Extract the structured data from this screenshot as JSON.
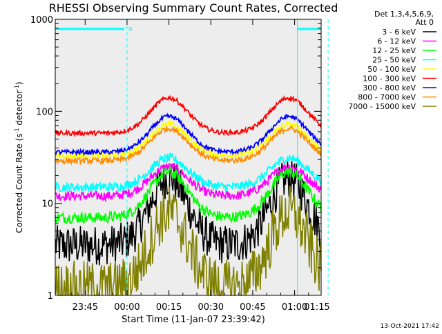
{
  "chart_data": {
    "type": "line",
    "title": "RHESSI Observing Summary Count Rates, Corrected",
    "xlabel": "Start Time (11-Jan-07 23:39:42)",
    "ylabel_main": "Corrected Count Rate (s",
    "ylabel_sup1": "-1",
    "ylabel_mid": " detector",
    "ylabel_sup2": "-1",
    "ylabel_end": ")",
    "yscale": "log",
    "ylim": [
      1,
      1000
    ],
    "xlim_minutes": [
      -5.7,
      89.5
    ],
    "x_ticks": [
      {
        "t": 5,
        "label": "23:45"
      },
      {
        "t": 20,
        "label": "00:00"
      },
      {
        "t": 35,
        "label": "00:15"
      },
      {
        "t": 50,
        "label": "00:30"
      },
      {
        "t": 65,
        "label": "00:45"
      },
      {
        "t": 80,
        "label": "01:00"
      },
      {
        "t": 95,
        "label": "01:15"
      }
    ],
    "y_ticks": [
      {
        "v": 1,
        "label": "1"
      },
      {
        "v": 10,
        "label": "10"
      },
      {
        "v": 100,
        "label": "100"
      },
      {
        "v": 1000,
        "label": "1000"
      }
    ],
    "legend_header": [
      "Det 1,3,4,5,6,9,",
      "Att 0"
    ],
    "legend_position": "right",
    "series": [
      {
        "name": "3 - 6 keV",
        "color": "#000000",
        "base": 3.5,
        "peak": 19,
        "noise": 0.22
      },
      {
        "name": "6 - 12 keV",
        "color": "#ff00ff",
        "base": 12,
        "peak": 25,
        "noise": 0.05
      },
      {
        "name": "12 - 25 keV",
        "color": "#00ff00",
        "base": 7,
        "peak": 22,
        "noise": 0.06
      },
      {
        "name": "25 - 50 keV",
        "color": "#00ffff",
        "base": 15,
        "peak": 31,
        "noise": 0.05
      },
      {
        "name": "50 - 100 keV",
        "color": "#ffff00",
        "base": 33,
        "peak": 72,
        "noise": 0.03
      },
      {
        "name": "100 - 300 keV",
        "color": "#ff0000",
        "base": 58,
        "peak": 140,
        "noise": 0.025
      },
      {
        "name": "300 - 800 keV",
        "color": "#0000ff",
        "base": 36,
        "peak": 88,
        "noise": 0.025
      },
      {
        "name": "800 - 7000 keV",
        "color": "#ff8c00",
        "base": 29,
        "peak": 65,
        "noise": 0.03
      },
      {
        "name": "7000 - 15000 keV",
        "color": "#808000",
        "base": 1.2,
        "peak": 8,
        "noise": 0.3
      }
    ],
    "peak_times_minutes": [
      35,
      78
    ],
    "night_markers_minutes": [
      20,
      92
    ],
    "saa_markers_minutes": [
      81
    ],
    "top_bars": [
      {
        "from": -5.7,
        "to": 19,
        "label": "N"
      },
      {
        "from": 81,
        "to": 92,
        "label": ""
      }
    ],
    "timestamp": "13-Oct-2021 17:42"
  }
}
